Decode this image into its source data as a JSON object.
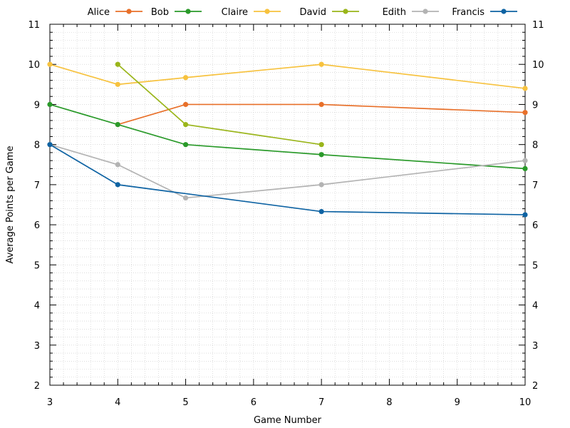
{
  "chart_data": {
    "type": "line",
    "xlabel": "Game Number",
    "ylabel": "Average Points per Game",
    "xlim": [
      3,
      10
    ],
    "ylim": [
      2,
      11
    ],
    "x_ticks": [
      "3",
      "4",
      "5",
      "6",
      "7",
      "8",
      "9",
      "10"
    ],
    "y_ticks": [
      "2",
      "3",
      "4",
      "5",
      "6",
      "7",
      "8",
      "9",
      "10",
      "11"
    ],
    "grid": "minor dotted",
    "legend_position": "top",
    "series": [
      {
        "name": "Alice",
        "color": "#e8702a",
        "points": [
          [
            4,
            8.5
          ],
          [
            5,
            9
          ],
          [
            7,
            9
          ],
          [
            10,
            8.8
          ]
        ]
      },
      {
        "name": "Bob",
        "color": "#2a9a2a",
        "points": [
          [
            3,
            9
          ],
          [
            4,
            8.5
          ],
          [
            5,
            8
          ],
          [
            7,
            7.75
          ],
          [
            10,
            7.4
          ]
        ]
      },
      {
        "name": "Claire",
        "color": "#f7c23e",
        "points": [
          [
            3,
            10
          ],
          [
            4,
            9.5
          ],
          [
            5,
            9.67
          ],
          [
            7,
            10
          ],
          [
            10,
            9.4
          ]
        ]
      },
      {
        "name": "David",
        "color": "#9ab51a",
        "points": [
          [
            4,
            10
          ],
          [
            5,
            8.5
          ],
          [
            7,
            8
          ]
        ]
      },
      {
        "name": "Edith",
        "color": "#b3b3b3",
        "points": [
          [
            3,
            8
          ],
          [
            4,
            7.5
          ],
          [
            5,
            6.67
          ],
          [
            7,
            7
          ],
          [
            10,
            7.6
          ]
        ]
      },
      {
        "name": "Francis",
        "color": "#0e63a3",
        "points": [
          [
            3,
            8
          ],
          [
            4,
            7
          ],
          [
            7,
            6.33
          ],
          [
            10,
            6.25
          ]
        ]
      }
    ]
  }
}
